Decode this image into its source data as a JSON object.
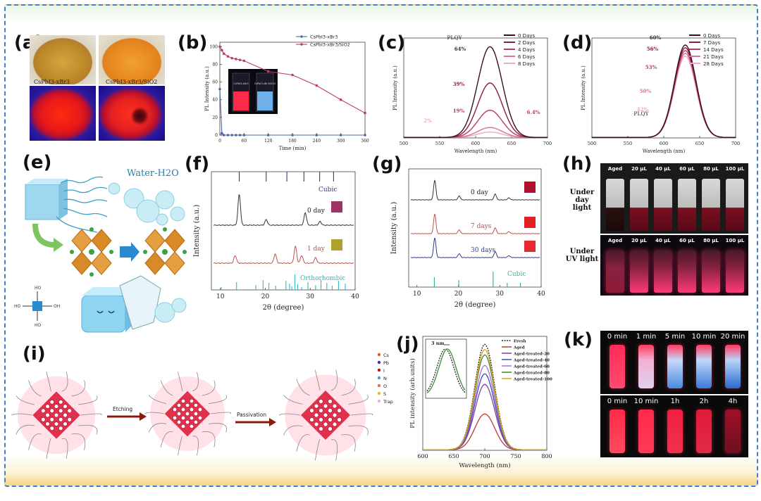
{
  "panels": {
    "a": {
      "label": "(a)",
      "sample1": "CsPbI3-xBr3",
      "sample2": "CsPbI3-xBr3/SiO2"
    },
    "b": {
      "label": "(b)"
    },
    "c": {
      "label": "(c)"
    },
    "d": {
      "label": "(d)"
    },
    "e": {
      "label": "(e)",
      "water_label": "Water-H2O"
    },
    "f": {
      "label": "(f)",
      "phase_top": "Cubic",
      "phase_bottom": "Orthorhombic",
      "day0": "0 day",
      "day1": "1 day"
    },
    "g": {
      "label": "(g)",
      "day0": "0 day",
      "day7": "7 days",
      "day30": "30 days",
      "phase": "Cubic"
    },
    "h": {
      "label": "(h)",
      "row1": "Under day light",
      "row2": "Under UV light",
      "columns": [
        "Aged",
        "20 µL",
        "40 µL",
        "60 µL",
        "80 µL",
        "100 µL"
      ]
    },
    "i": {
      "label": "(i)",
      "step1": "Etching",
      "step2": "Passivation",
      "legend": [
        "Cs",
        "Pb",
        "I",
        "N",
        "O",
        "S",
        "Trap"
      ]
    },
    "j": {
      "label": "(j)",
      "inset_note": "3 nm"
    },
    "k": {
      "label": "(k)",
      "row1_times": [
        "0 min",
        "1 min",
        "5 min",
        "10 min",
        "20 min"
      ],
      "row2_times": [
        "0 min",
        "10 min",
        "1h",
        "2h",
        "4h"
      ]
    }
  },
  "chart_data": [
    {
      "id": "b",
      "type": "line",
      "xlabel": "Time (min)",
      "ylabel": "PL Intensity (a.u.)",
      "xlim": [
        0,
        360
      ],
      "ylim": [
        0,
        105
      ],
      "xticks": [
        0,
        60,
        120,
        180,
        240,
        300,
        360
      ],
      "yticks": [
        0,
        20,
        40,
        60,
        80,
        100
      ],
      "inset": {
        "left_caption": "CsPbI3-xBr3",
        "right_caption": "CsPbI3-xBr3/SiO2"
      },
      "series": [
        {
          "name": "CsPbI3-xBr3",
          "color": "#4a6aa0",
          "x": [
            0,
            5,
            10,
            20,
            30,
            40,
            50,
            60,
            120,
            180,
            240,
            300,
            360
          ],
          "y": [
            52,
            2,
            0,
            0,
            0,
            0,
            0,
            0,
            0,
            0,
            0,
            0,
            0
          ]
        },
        {
          "name": "CsPbI3-xBr3/SiO2",
          "color": "#b8405a",
          "x": [
            0,
            5,
            10,
            20,
            30,
            40,
            50,
            60,
            120,
            180,
            240,
            300,
            360
          ],
          "y": [
            100,
            96,
            92,
            89,
            87,
            86,
            85,
            84,
            72,
            68,
            56,
            40,
            25
          ]
        }
      ]
    },
    {
      "id": "c",
      "type": "line",
      "xlabel": "Wavelength (nm)",
      "ylabel": "PL Intensity (a.u.)",
      "xlim": [
        500,
        700
      ],
      "ylim": [
        0,
        1.1
      ],
      "xticks": [
        500,
        550,
        600,
        650,
        700
      ],
      "center": 620,
      "width": 17,
      "plqy_title": "PLQY",
      "annotations": [
        "64%",
        "39%",
        "19%",
        "6.4%",
        "2%"
      ],
      "series": [
        {
          "name": "0 Days",
          "color": "#3a1020",
          "peak": 1.0
        },
        {
          "name": "2 Days",
          "color": "#8c1a48",
          "peak": 0.6
        },
        {
          "name": "4 Days",
          "color": "#b83a6a",
          "peak": 0.3
        },
        {
          "name": "6 Days",
          "color": "#d7709a",
          "peak": 0.11
        },
        {
          "name": "8 Days",
          "color": "#ecaac4",
          "peak": 0.06
        }
      ]
    },
    {
      "id": "d",
      "type": "line",
      "xlabel": "Wavelength (nm)",
      "ylabel": "PL Intensity (a.u.)",
      "xlim": [
        500,
        700
      ],
      "ylim": [
        0,
        1.08
      ],
      "xticks": [
        500,
        550,
        600,
        650,
        700
      ],
      "center": 630,
      "width": 15,
      "plqy_title": "PLQY",
      "annotations": [
        "60%",
        "56%",
        "53%",
        "50%",
        "42%"
      ],
      "series": [
        {
          "name": "0 Days",
          "color": "#3a1020",
          "peak": 1.0
        },
        {
          "name": "7 Days",
          "color": "#8c1a48",
          "peak": 0.97
        },
        {
          "name": "14 Days",
          "color": "#b83a6a",
          "peak": 0.94
        },
        {
          "name": "21 Days",
          "color": "#d7709a",
          "peak": 0.91
        },
        {
          "name": "28 Days",
          "color": "#ecaac4",
          "peak": 0.88
        }
      ]
    },
    {
      "id": "f",
      "type": "line",
      "xlabel": "2θ (degree)",
      "ylabel": "Intensity (a.u.)",
      "xlim": [
        8,
        40
      ],
      "xticks": [
        10,
        20,
        30,
        40
      ],
      "cubic_ref": [
        14.2,
        20.2,
        24.8,
        28.6,
        32.1,
        35.2
      ],
      "ortho_ref": [
        10.2,
        13.6,
        17.9,
        19.5,
        20.8,
        22.3,
        24.6,
        25.4,
        25.9,
        26.6,
        27.2,
        28.1,
        29.5,
        31.2,
        32.4,
        33.7,
        34.9,
        36.3,
        37.8
      ],
      "series": [
        {
          "name": "0 day",
          "color": "#333333",
          "peaks": [
            [
              14.2,
              1.0
            ],
            [
              20.2,
              0.18
            ],
            [
              28.9,
              0.4
            ],
            [
              32.2,
              0.12
            ]
          ]
        },
        {
          "name": "1 day",
          "color": "#c0504d",
          "peaks": [
            [
              13.3,
              0.25
            ],
            [
              22.2,
              0.3
            ],
            [
              26.7,
              0.55
            ],
            [
              28.1,
              0.25
            ],
            [
              31.2,
              0.18
            ]
          ]
        }
      ]
    },
    {
      "id": "g",
      "type": "line",
      "xlabel": "2θ (degree)",
      "ylabel": "Intensity (a.u.)",
      "xlim": [
        8,
        40
      ],
      "xticks": [
        10,
        20,
        30,
        40
      ],
      "cubic_ref": [
        14.2,
        20.1,
        28.4,
        31.8,
        35.0
      ],
      "series": [
        {
          "name": "0 day",
          "color": "#333333",
          "peaks": [
            [
              14.3,
              1.0
            ],
            [
              20.2,
              0.2
            ],
            [
              28.9,
              0.3
            ],
            [
              32.2,
              0.1
            ]
          ]
        },
        {
          "name": "7 days",
          "color": "#c0504d",
          "peaks": [
            [
              14.3,
              1.0
            ],
            [
              20.2,
              0.2
            ],
            [
              28.9,
              0.3
            ],
            [
              32.2,
              0.1
            ]
          ]
        },
        {
          "name": "30 days",
          "color": "#2f3d8a",
          "peaks": [
            [
              14.3,
              1.0
            ],
            [
              20.2,
              0.2
            ],
            [
              28.9,
              0.3
            ],
            [
              32.2,
              0.1
            ]
          ]
        }
      ]
    },
    {
      "id": "j",
      "type": "line",
      "xlabel": "Wavelength (nm)",
      "ylabel": "PL intensity (arb.units)",
      "xlim": [
        600,
        800
      ],
      "ylim": [
        0,
        1.08
      ],
      "xticks": [
        600,
        650,
        700,
        750,
        800
      ],
      "center": 700,
      "width": 16,
      "series": [
        {
          "name": "Fresh",
          "color": "#222222",
          "peak": 1.0,
          "dash": true
        },
        {
          "name": "Aged",
          "color": "#c0392b",
          "peak": 0.34
        },
        {
          "name": "Aged-treated-20",
          "color": "#7b3fa0",
          "peak": 0.62
        },
        {
          "name": "Aged-treated-40",
          "color": "#3c4ab5",
          "peak": 0.72
        },
        {
          "name": "Aged-treated-60",
          "color": "#b36ad0",
          "peak": 0.8
        },
        {
          "name": "Aged-treated-80",
          "color": "#3a8a3a",
          "peak": 0.9
        },
        {
          "name": "Aged-treated-100",
          "color": "#e0a020",
          "peak": 0.95
        }
      ]
    }
  ]
}
